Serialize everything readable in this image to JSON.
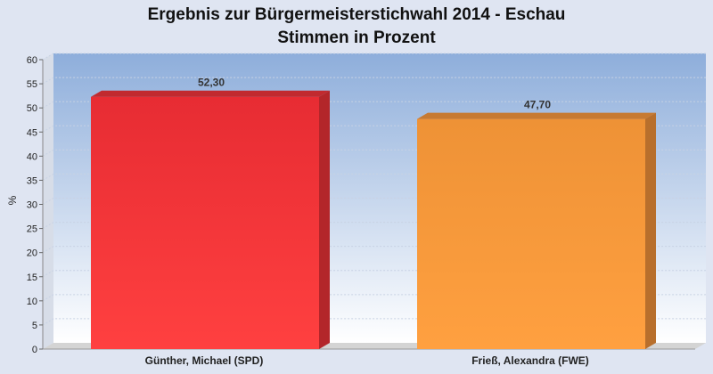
{
  "chart_data": {
    "type": "bar",
    "title": "Ergebnis zur Bürgermeisterstichwahl 2014 - Eschau",
    "subtitle": "Stimmen in Prozent",
    "xlabel": "",
    "ylabel": "%",
    "categories": [
      "Günther, Michael (SPD)",
      "Frieß, Alexandra (FWE)"
    ],
    "values": [
      52.3,
      47.7
    ],
    "value_labels": [
      "52,30",
      "47,70"
    ],
    "ylim": [
      0,
      60
    ],
    "yticks": [
      0,
      5,
      10,
      15,
      20,
      25,
      30,
      35,
      40,
      45,
      50,
      55,
      60
    ],
    "grid": true,
    "colors": [
      "#ee3030",
      "#f2963a"
    ],
    "side_colors": [
      "#b3262a",
      "#b86f2c"
    ],
    "top_colors": [
      "#c12a2f",
      "#c77a32"
    ],
    "plot_background_top": "#8eaedb",
    "plot_background_bottom": "#ffffff"
  }
}
